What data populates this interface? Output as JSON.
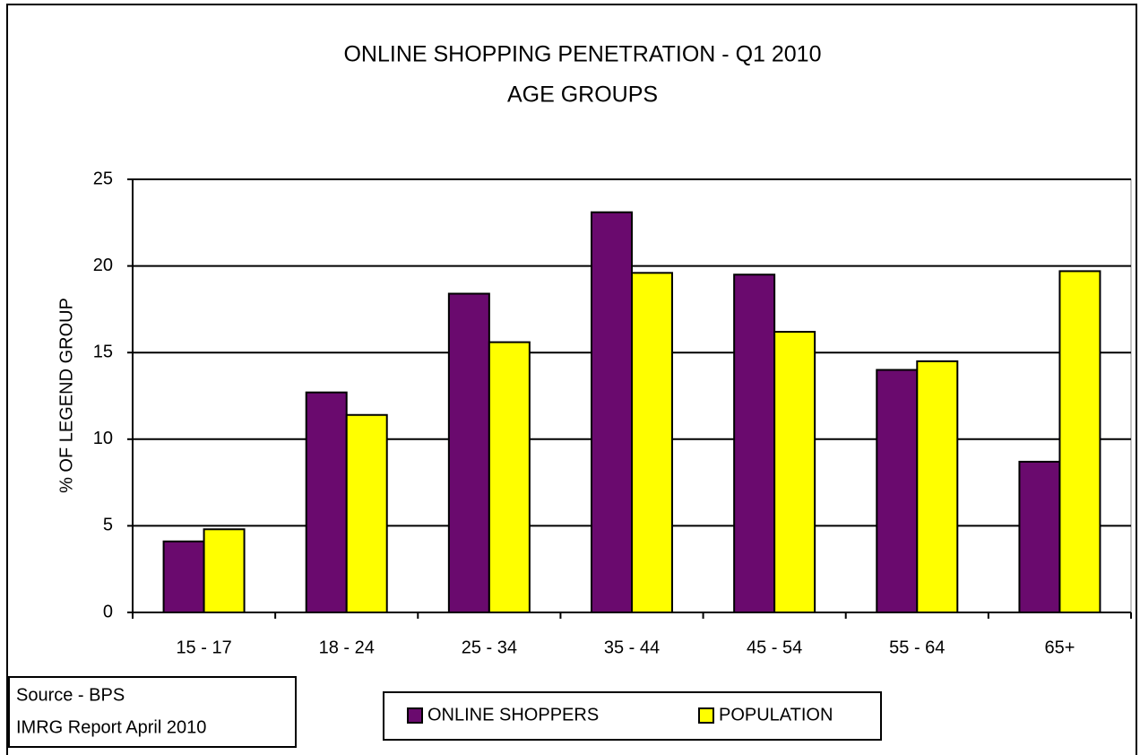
{
  "chart_data": {
    "type": "bar",
    "title": "ONLINE SHOPPING PENETRATION  -  Q1 2010",
    "subtitle": "AGE GROUPS",
    "y_label": "% OF LEGEND GROUP",
    "categories": [
      "15 - 17",
      "18 - 24",
      "25 - 34",
      "35 - 44",
      "45 - 54",
      "55 - 64",
      "65+"
    ],
    "series": [
      {
        "name": "ONLINE SHOPPERS",
        "color": "#6a0a6e",
        "values": [
          4.1,
          12.7,
          18.4,
          23.1,
          19.5,
          14.0,
          8.7
        ]
      },
      {
        "name": "POPULATION",
        "color": "#ffff00",
        "values": [
          4.8,
          11.4,
          15.6,
          19.6,
          16.2,
          14.5,
          19.7
        ]
      }
    ],
    "ylim": [
      0,
      25
    ],
    "yticks": [
      0,
      5,
      10,
      15,
      20,
      25
    ],
    "grid": true,
    "source": [
      "Source - BPS",
      "IMRG Report  April 2010"
    ]
  }
}
